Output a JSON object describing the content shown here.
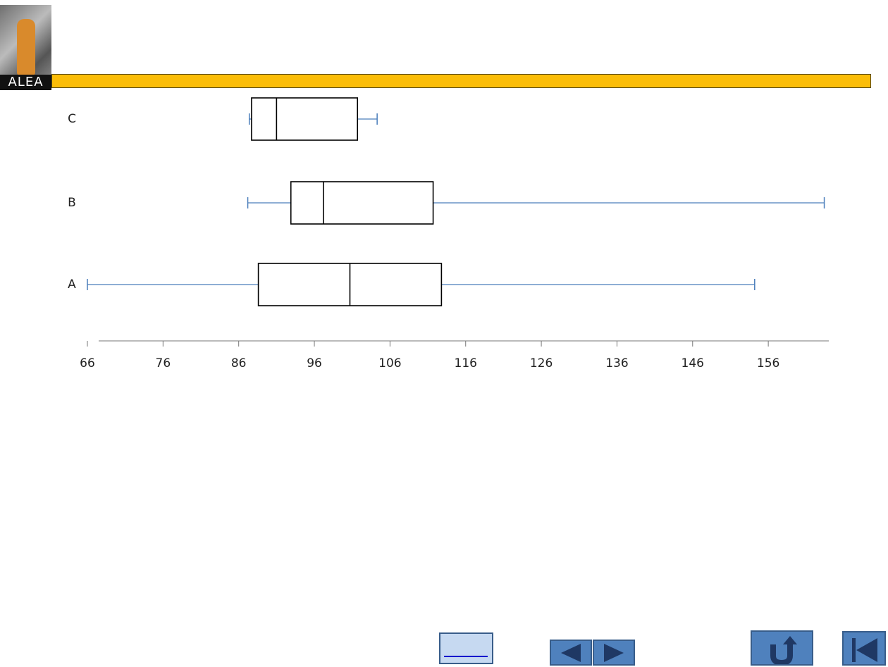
{
  "header": {
    "logo_text": "ALEA"
  },
  "chart_data": {
    "type": "box",
    "categories": [
      "A",
      "B",
      "C"
    ],
    "min": [
      66,
      87.2,
      87.4
    ],
    "q1": [
      88.6,
      92.9,
      87.7
    ],
    "median": [
      100.7,
      97.2,
      91.0
    ],
    "q3": [
      112.8,
      111.7,
      101.7
    ],
    "max": [
      154.2,
      163.4,
      104.3
    ],
    "box_color": "#000000",
    "whisker_color": "#4a7ebb",
    "xlim": [
      66,
      164
    ],
    "xticks": [
      66,
      76,
      86,
      96,
      106,
      116,
      126,
      136,
      146,
      156
    ]
  }
}
